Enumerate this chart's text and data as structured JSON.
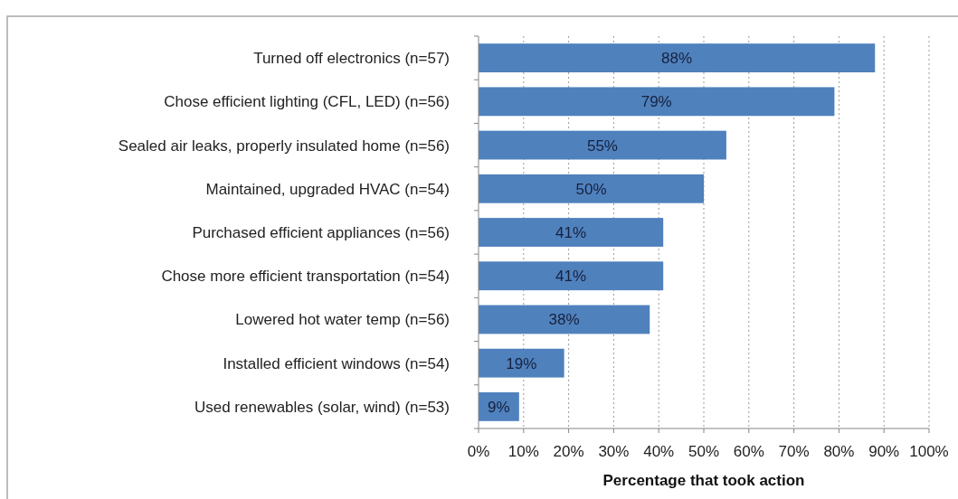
{
  "chart_data": {
    "type": "bar",
    "orientation": "horizontal",
    "categories": [
      "Turned off electronics (n=57)",
      "Chose efficient lighting (CFL, LED) (n=56)",
      "Sealed air leaks, properly insulated home (n=56)",
      "Maintained, upgraded HVAC (n=54)",
      "Purchased efficient appliances (n=56)",
      "Chose more efficient transportation (n=54)",
      "Lowered hot water temp (n=56)",
      "Installed efficient windows (n=54)",
      "Used renewables (solar, wind) (n=53)"
    ],
    "values": [
      88,
      79,
      55,
      50,
      41,
      41,
      38,
      19,
      9
    ],
    "color": "#4f81bd",
    "value_labels": [
      "88%",
      "79%",
      "55%",
      "50%",
      "41%",
      "41%",
      "38%",
      "19%",
      "9%"
    ],
    "xlim": [
      0,
      100
    ],
    "xticks": [
      {
        "value": 0,
        "label": "0%"
      },
      {
        "value": 10,
        "label": "10%"
      },
      {
        "value": 20,
        "label": "20%"
      },
      {
        "value": 30,
        "label": "30%"
      },
      {
        "value": 40,
        "label": "40%"
      },
      {
        "value": 50,
        "label": "50%"
      },
      {
        "value": 60,
        "label": "60%"
      },
      {
        "value": 70,
        "label": "70%"
      },
      {
        "value": 80,
        "label": "80%"
      },
      {
        "value": 90,
        "label": "90%"
      },
      {
        "value": 100,
        "label": "100%"
      }
    ],
    "xlabel": "Percentage that took action",
    "grid": "x"
  }
}
